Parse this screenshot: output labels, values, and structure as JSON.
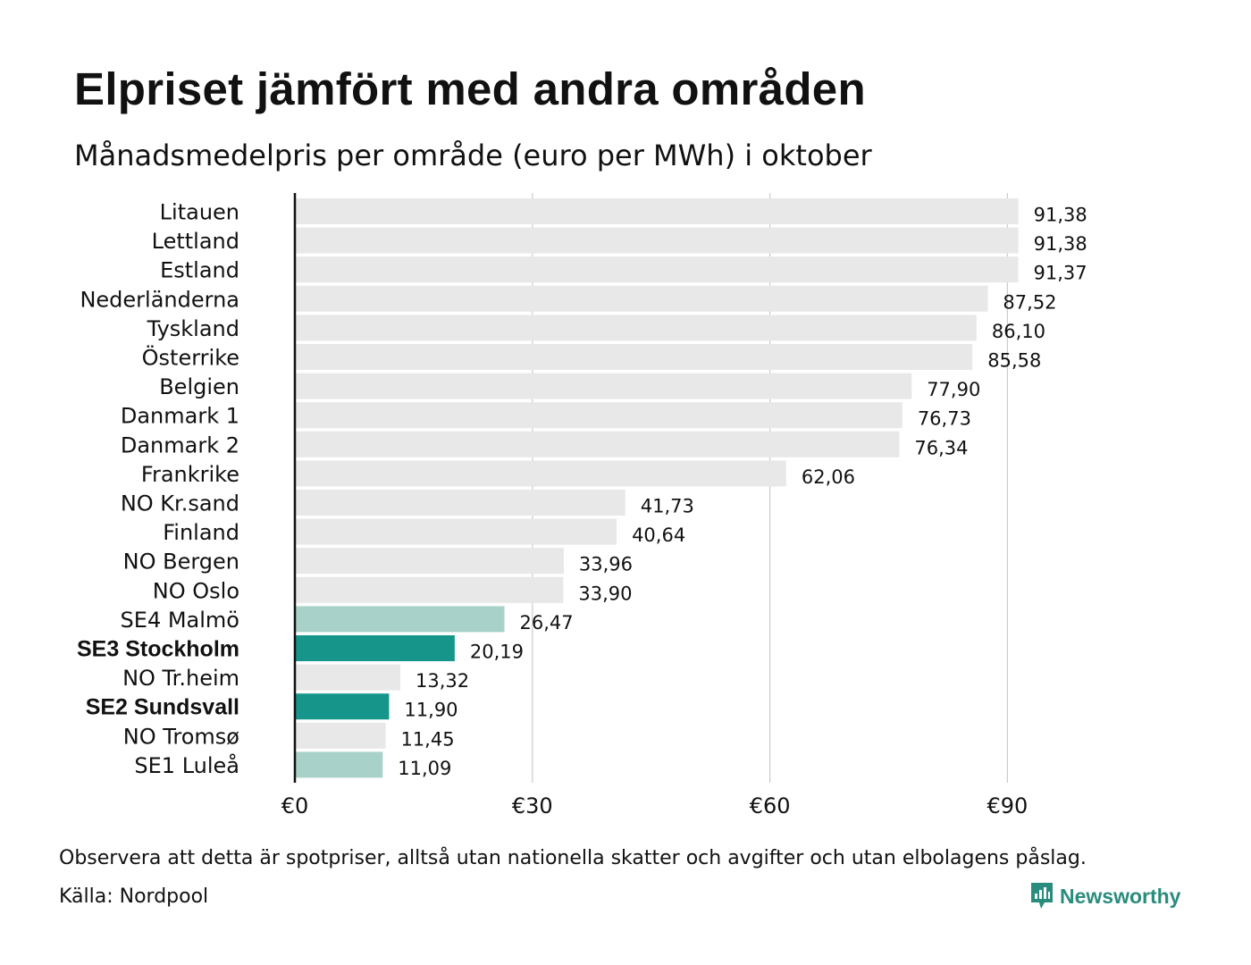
{
  "title": "Elpriset jämfört med andra områden",
  "subtitle": "Månadsmedelpris per område (euro per MWh) i oktober",
  "note": "Observera att detta är spotpriser, alltså utan nationella skatter och avgifter och utan elbolagens påslag.",
  "source": "Källa: Nordpool",
  "brand": {
    "name": "Newsworthy",
    "logo_icon": "newsworthy-chart-bubble-icon"
  },
  "colors": {
    "default_bar": "#e8e8e8",
    "highlight_light": "#a8d1c9",
    "highlight_dark": "#16968a",
    "grid": "#cccccc",
    "axis": "#111111",
    "brand": "#2a8c7d"
  },
  "chart_data": {
    "type": "bar",
    "orientation": "horizontal",
    "categories": [
      "Litauen",
      "Lettland",
      "Estland",
      "Nederländerna",
      "Tyskland",
      "Österrike",
      "Belgien",
      "Danmark  1",
      "Danmark  2",
      "Frankrike",
      "NO Kr.sand",
      "Finland",
      "NO Bergen",
      "NO Oslo",
      "SE4  Malmö",
      "SE3 Stockholm",
      "NO Tr.heim",
      "SE2 Sundsvall",
      "NO Tromsø",
      "SE1  Luleå"
    ],
    "values": [
      91.38,
      91.38,
      91.37,
      87.52,
      86.1,
      85.58,
      77.9,
      76.73,
      76.34,
      62.06,
      41.73,
      40.64,
      33.96,
      33.9,
      26.47,
      20.19,
      13.32,
      11.9,
      11.45,
      11.09
    ],
    "value_labels": [
      "91,38",
      "91,38",
      "91,37",
      "87,52",
      "86,10",
      "85,58",
      "77,90",
      "76,73",
      "76,34",
      "62,06",
      "41,73",
      "40,64",
      "33,96",
      "33,90",
      "26,47",
      "20,19",
      "13,32",
      "11,90",
      "11,45",
      "11,09"
    ],
    "highlight": [
      "none",
      "none",
      "none",
      "none",
      "none",
      "none",
      "none",
      "none",
      "none",
      "none",
      "none",
      "none",
      "none",
      "none",
      "light",
      "dark",
      "none",
      "dark",
      "none",
      "light"
    ],
    "bold_labels": [
      false,
      false,
      false,
      false,
      false,
      false,
      false,
      false,
      false,
      false,
      false,
      false,
      false,
      false,
      false,
      true,
      false,
      true,
      false,
      false
    ],
    "xlim": [
      0,
      100
    ],
    "xticks": [
      0,
      30,
      60,
      90
    ],
    "xtick_labels": [
      "€0",
      "€30",
      "€60",
      "€90"
    ],
    "grid": true,
    "legend": "none"
  }
}
